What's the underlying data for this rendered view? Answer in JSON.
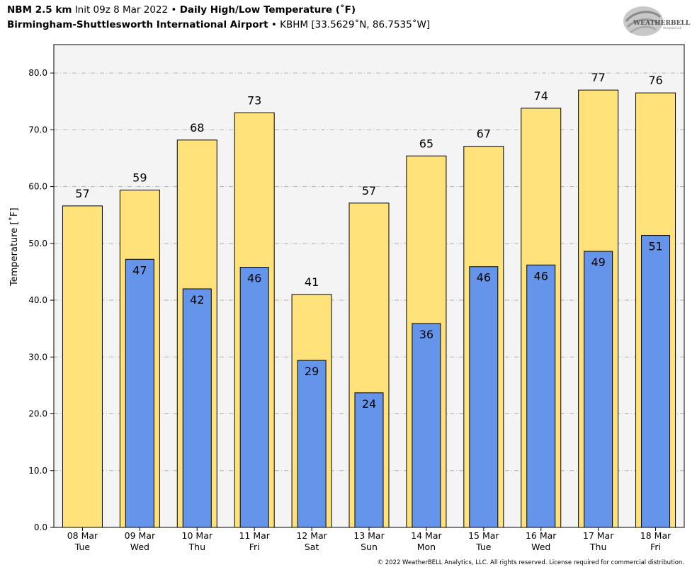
{
  "header": {
    "model": "NBM 2.5 km",
    "init": "Init 09z 8 Mar 2022",
    "bullet": "•",
    "product": "Daily High/Low Temperature (˚F)",
    "location": "Birmingham-Shuttlesworth International Airport",
    "station": "KBHM [33.5629˚N, 86.7535˚W]"
  },
  "logo": {
    "text_main": "WEATHERBELL",
    "text_sub": "Analytics LLC"
  },
  "copyright": "© 2022 WeatherBELL Analytics, LLC. All rights reserved. License required for commercial distribution.",
  "colors": {
    "high": "#ffe27a",
    "low": "#6595ea",
    "plot_bg": "#f4f4f4",
    "grid": "#b0b0b0"
  },
  "chart_data": {
    "type": "bar",
    "ylabel": "Temperature [˚F]",
    "ylim": [
      0,
      85
    ],
    "yticks": [
      "0.0",
      "10.0",
      "20.0",
      "30.0",
      "40.0",
      "50.0",
      "60.0",
      "70.0",
      "80.0"
    ],
    "grid": true,
    "categories": [
      [
        "08 Mar",
        "Tue"
      ],
      [
        "09 Mar",
        "Wed"
      ],
      [
        "10 Mar",
        "Thu"
      ],
      [
        "11 Mar",
        "Fri"
      ],
      [
        "12 Mar",
        "Sat"
      ],
      [
        "13 Mar",
        "Sun"
      ],
      [
        "14 Mar",
        "Mon"
      ],
      [
        "15 Mar",
        "Tue"
      ],
      [
        "16 Mar",
        "Wed"
      ],
      [
        "17 Mar",
        "Thu"
      ],
      [
        "18 Mar",
        "Fri"
      ]
    ],
    "series": [
      {
        "values": [
          56.6,
          59.4,
          68.2,
          73.0,
          41.0,
          57.1,
          65.4,
          67.1,
          73.8,
          77.0,
          76.5
        ],
        "labels": [
          "57",
          "59",
          "68",
          "73",
          "41",
          "57",
          "65",
          "67",
          "74",
          "77",
          "76"
        ]
      },
      {
        "values": [
          null,
          47.2,
          42.0,
          45.8,
          29.4,
          23.7,
          35.9,
          45.9,
          46.2,
          48.6,
          51.4
        ],
        "labels": [
          null,
          "47",
          "42",
          "46",
          "29",
          "24",
          "36",
          "46",
          "46",
          "49",
          "51"
        ]
      }
    ]
  }
}
